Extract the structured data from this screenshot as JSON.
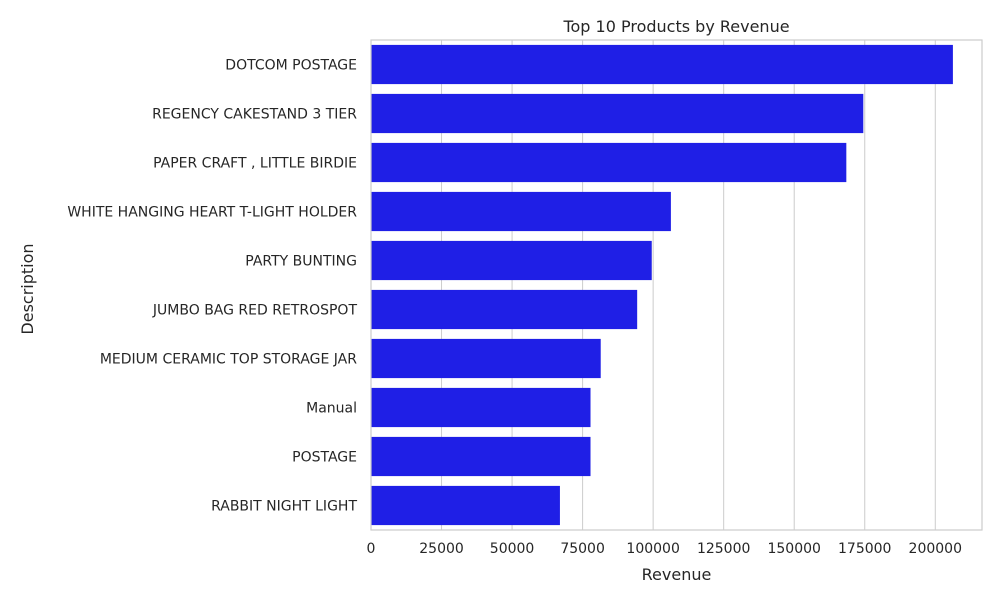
{
  "chart_data": {
    "type": "bar",
    "orientation": "horizontal",
    "title": "Top 10 Products by Revenue",
    "xlabel": "Revenue",
    "ylabel": "Description",
    "categories": [
      "DOTCOM POSTAGE",
      "REGENCY CAKESTAND 3 TIER",
      "PAPER CRAFT , LITTLE BIRDIE",
      "WHITE HANGING HEART T-LIGHT HOLDER",
      "PARTY BUNTING",
      "JUMBO BAG RED RETROSPOT",
      "MEDIUM CERAMIC TOP STORAGE JAR",
      "Manual",
      "POSTAGE",
      "RABBIT NIGHT LIGHT"
    ],
    "values": [
      206245,
      174484,
      168470,
      106293,
      99504,
      94340,
      81417,
      77803,
      77803,
      66964
    ],
    "xlim": [
      0,
      216557
    ],
    "xticks": [
      0,
      25000,
      50000,
      75000,
      100000,
      125000,
      150000,
      175000,
      200000
    ],
    "grid": "vertical",
    "bar_color": "#1f1fe6",
    "grid_color": "#cccccc",
    "text_color": "#262626"
  }
}
